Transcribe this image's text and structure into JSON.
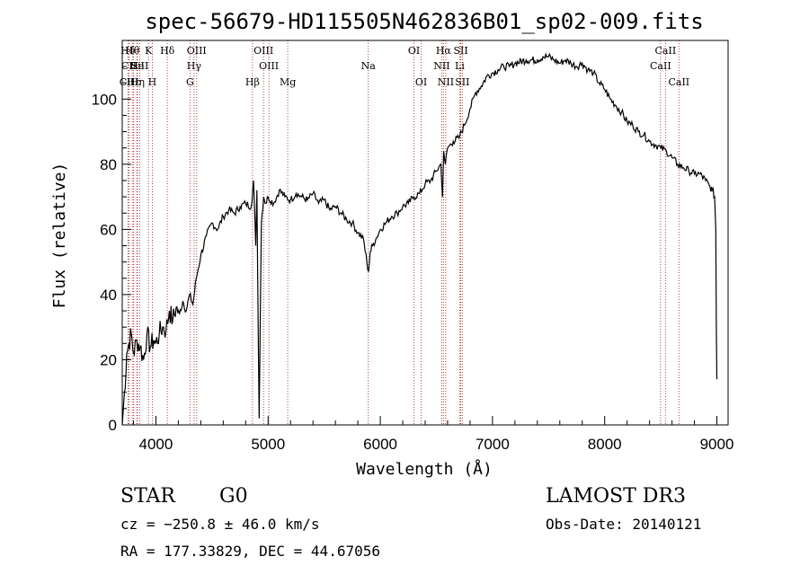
{
  "chart_data": {
    "type": "line",
    "title": "spec-56679-HD115505N462836B01_sp02-009.fits",
    "xlabel": "Wavelength (Å)",
    "ylabel": "Flux (relative)",
    "xlim": [
      3700,
      9100
    ],
    "ylim": [
      0,
      118
    ],
    "xticks": [
      4000,
      5000,
      6000,
      7000,
      8000,
      9000
    ],
    "yticks": [
      0,
      20,
      40,
      60,
      80,
      100
    ],
    "series": [
      {
        "name": "flux",
        "x": [
          3700,
          3720,
          3740,
          3760,
          3780,
          3800,
          3830,
          3860,
          3890,
          3920,
          3950,
          3980,
          4000,
          4030,
          4060,
          4090,
          4120,
          4150,
          4180,
          4210,
          4240,
          4270,
          4300,
          4330,
          4360,
          4400,
          4450,
          4500,
          4550,
          4600,
          4650,
          4700,
          4750,
          4800,
          4850,
          4870,
          4890,
          4900,
          4920,
          4940,
          4960,
          4980,
          5000,
          5050,
          5100,
          5150,
          5200,
          5250,
          5300,
          5350,
          5400,
          5450,
          5500,
          5550,
          5600,
          5650,
          5700,
          5750,
          5800,
          5850,
          5880,
          5895,
          5910,
          5930,
          5960,
          6000,
          6050,
          6100,
          6150,
          6200,
          6250,
          6300,
          6350,
          6400,
          6450,
          6500,
          6540,
          6555,
          6565,
          6580,
          6600,
          6650,
          6700,
          6750,
          6800,
          6850,
          6900,
          6950,
          7000,
          7050,
          7100,
          7150,
          7200,
          7300,
          7400,
          7450,
          7500,
          7550,
          7600,
          7650,
          7700,
          7750,
          7800,
          7850,
          7900,
          7950,
          8000,
          8050,
          8100,
          8150,
          8200,
          8250,
          8300,
          8350,
          8400,
          8450,
          8500,
          8550,
          8600,
          8650,
          8700,
          8750,
          8800,
          8850,
          8900,
          8940,
          8960,
          8980,
          8990,
          8995,
          9000
        ],
        "values": [
          0,
          10,
          22,
          25,
          28,
          22,
          26,
          24,
          20,
          28,
          24,
          26,
          25,
          28,
          30,
          29,
          35,
          32,
          36,
          34,
          38,
          35,
          40,
          37,
          45,
          52,
          58,
          62,
          60,
          64,
          66,
          65,
          67,
          68,
          67,
          75,
          55,
          72,
          2,
          62,
          70,
          68,
          70,
          68,
          72,
          70,
          69,
          71,
          70,
          69,
          71,
          68,
          69,
          66,
          67,
          65,
          63,
          62,
          59,
          57,
          50,
          47,
          53,
          55,
          57,
          60,
          62,
          64,
          65,
          67,
          68,
          70,
          71,
          74,
          75,
          78,
          80,
          70,
          84,
          80,
          85,
          87,
          88,
          92,
          97,
          102,
          104,
          107,
          108,
          109,
          110,
          110,
          111,
          112,
          112,
          113,
          113,
          112,
          111,
          112,
          111,
          110,
          111,
          109,
          108,
          105,
          103,
          100,
          98,
          96,
          93,
          92,
          90,
          89,
          87,
          86,
          85,
          84,
          82,
          80,
          79,
          78,
          77,
          77,
          75,
          73,
          72,
          70,
          60,
          30,
          14
        ]
      }
    ],
    "lines": [
      {
        "label": "Hδ",
        "x": 3750,
        "row": 1
      },
      {
        "label": "CII",
        "x": 3760,
        "row": 2
      },
      {
        "label": "CIII",
        "x": 3760,
        "row": 3
      },
      {
        "label": "Hε",
        "x": 3800,
        "row": 3
      },
      {
        "label": "Hθ",
        "x": 3790,
        "row": 1
      },
      {
        "label": "He",
        "x": 3830,
        "row": 2
      },
      {
        "label": "Hη",
        "x": 3835,
        "row": 3
      },
      {
        "label": "K",
        "x": 3934,
        "row": 1
      },
      {
        "label": "H",
        "x": 3968,
        "row": 3
      },
      {
        "label": "SiII",
        "x": 3856,
        "row": 2
      },
      {
        "label": "Hδ",
        "x": 4102,
        "row": 1
      },
      {
        "label": "OIII",
        "x": 4363,
        "row": 1
      },
      {
        "label": "Hγ",
        "x": 4340,
        "row": 2
      },
      {
        "label": "G",
        "x": 4304,
        "row": 3
      },
      {
        "label": "OIII",
        "x": 4959,
        "row": 1
      },
      {
        "label": "OIII",
        "x": 5007,
        "row": 2
      },
      {
        "label": "Hβ",
        "x": 4861,
        "row": 3
      },
      {
        "label": "Mg",
        "x": 5175,
        "row": 3
      },
      {
        "label": "Na",
        "x": 5893,
        "row": 2
      },
      {
        "label": "OI",
        "x": 6300,
        "row": 1
      },
      {
        "label": "OI",
        "x": 6364,
        "row": 3
      },
      {
        "label": "Hα",
        "x": 6563,
        "row": 1
      },
      {
        "label": "NII",
        "x": 6548,
        "row": 2
      },
      {
        "label": "NII",
        "x": 6584,
        "row": 3
      },
      {
        "label": "SII",
        "x": 6717,
        "row": 1
      },
      {
        "label": "Li",
        "x": 6708,
        "row": 2
      },
      {
        "label": "SII",
        "x": 6731,
        "row": 3
      },
      {
        "label": "CaII",
        "x": 8542,
        "row": 1
      },
      {
        "label": "CaII",
        "x": 8498,
        "row": 2
      },
      {
        "label": "CaII",
        "x": 8662,
        "row": 3
      }
    ]
  },
  "info": {
    "object_class": "STAR",
    "subclass": "G0",
    "survey": "LAMOST DR3",
    "velocity": "cz = −250.8 ± 46.0 km/s",
    "obs_date": "Obs-Date: 20140121",
    "coordinates": "RA = 177.33829, DEC =  44.67056"
  }
}
